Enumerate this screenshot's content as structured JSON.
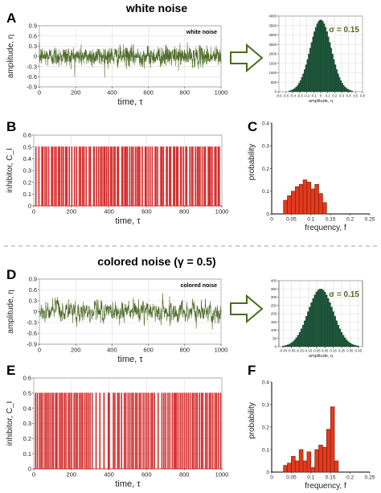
{
  "titles": {
    "top": "white noise",
    "mid": "colored noise (γ = 0.5)"
  },
  "panel_letters": [
    "A",
    "B",
    "C",
    "D",
    "E",
    "F"
  ],
  "colors": {
    "noise": "#4f6b2a",
    "spikes": "#d42a2a",
    "hist_green": "#1f5a3c",
    "hist_red": "#e23a1e",
    "sigma_text": "#4a6b1d",
    "arrow": "#4a6b1d",
    "divider": "#a0a0a0"
  },
  "chart_data": [
    {
      "panel": "A",
      "type": "line",
      "annotation": "white noise",
      "xlabel": "time, τ",
      "ylabel": "amplitude, η",
      "xlim": [
        0,
        1000
      ],
      "ylim": [
        -0.9,
        0.9
      ],
      "xticks": [
        "0",
        "200",
        "400",
        "600",
        "800",
        "1000"
      ],
      "yticks": [
        "-0.9",
        "-0.6",
        "-0.3",
        "0",
        "0.3",
        "0.6",
        "0.9"
      ],
      "noise": {
        "mean": 0,
        "sd": 0.15,
        "n": 1000,
        "correlation": 0
      }
    },
    {
      "panel": "A-inset",
      "type": "bar",
      "annotation": "σ = 0.15",
      "xlabel": "amplitude, η",
      "xticks": [
        "-0.6",
        "-0.5",
        "-0.4",
        "-0.3",
        "-0.2",
        "-0.1",
        "0",
        "0.1",
        "0.2",
        "0.3",
        "0.4",
        "0.5",
        "0.6"
      ],
      "yticks": [
        "0",
        "500",
        "1000",
        "1500",
        "2000",
        "2500",
        "3000",
        "3500",
        "4000"
      ],
      "xlim": [
        -0.6,
        0.6
      ],
      "ylim": [
        0,
        4000
      ],
      "distribution": {
        "mean": 0,
        "sd": 0.15,
        "peak": 3800,
        "bin_width": 0.02
      }
    },
    {
      "panel": "B",
      "type": "line",
      "xlabel": "time, τ",
      "ylabel": "inhibitor, C_I",
      "xlim": [
        0,
        1000
      ],
      "ylim": [
        0,
        0.6
      ],
      "xticks": [
        "0",
        "200",
        "400",
        "600",
        "800",
        "1000"
      ],
      "yticks": [
        "0",
        "0.1",
        "0.2",
        "0.3",
        "0.4",
        "0.5",
        "0.6"
      ],
      "pulse_height": 0.5,
      "pulse_width": 3,
      "pulse_times": [
        10,
        26,
        42,
        47,
        58,
        67,
        78,
        93,
        99,
        110,
        118,
        130,
        137,
        147,
        156,
        168,
        175,
        187,
        201,
        215,
        226,
        240,
        248,
        258,
        266,
        277,
        293,
        300,
        317,
        320,
        332,
        343,
        353,
        361,
        371,
        377,
        386,
        395,
        407,
        414,
        424,
        431,
        443,
        449,
        467,
        472,
        482,
        489,
        496,
        509,
        519,
        527,
        539,
        548,
        556,
        563,
        575,
        591,
        596,
        607,
        617,
        628,
        644,
        648,
        657,
        674,
        680,
        688,
        704,
        708,
        720,
        727,
        742,
        748,
        758,
        765,
        780,
        783,
        794,
        807,
        812,
        828,
        838,
        845,
        858,
        868,
        875,
        883,
        894,
        905,
        911,
        926,
        932,
        938,
        947,
        961,
        968,
        979,
        985
      ]
    },
    {
      "panel": "C",
      "type": "bar",
      "xlabel": "frequency, f",
      "ylabel": "probability",
      "xlim": [
        0,
        0.25
      ],
      "ylim": [
        0,
        0.4
      ],
      "xticks": [
        "0",
        "0.05",
        "0.1",
        "0.15",
        "0.2",
        "0.25"
      ],
      "yticks": [
        "0",
        "0.1",
        "0.2",
        "0.3",
        "0.4"
      ],
      "bin_width": 0.01,
      "x": [
        0.035,
        0.045,
        0.055,
        0.065,
        0.075,
        0.085,
        0.095,
        0.105,
        0.115,
        0.125,
        0.135
      ],
      "values": [
        0.06,
        0.08,
        0.1,
        0.12,
        0.13,
        0.15,
        0.14,
        0.11,
        0.13,
        0.09,
        0.05
      ]
    },
    {
      "panel": "D",
      "type": "line",
      "annotation": "colored noise",
      "xlabel": "time, τ",
      "ylabel": "amplitude, η",
      "xlim": [
        0,
        1000
      ],
      "ylim": [
        -0.9,
        0.9
      ],
      "xticks": [
        "0",
        "200",
        "400",
        "600",
        "800",
        "1000"
      ],
      "yticks": [
        "-0.9",
        "-0.6",
        "-0.3",
        "0",
        "0.3",
        "0.6",
        "0.9"
      ],
      "noise": {
        "mean": 0,
        "sd": 0.15,
        "n": 1000,
        "correlation": 0.5
      }
    },
    {
      "panel": "D-inset",
      "type": "bar",
      "annotation": "σ = 0.15",
      "xlabel": "amplitude, η",
      "xticks": [
        "-0.45",
        "-0.35",
        "-0.25",
        "-0.15",
        "-0.05",
        "0.05",
        "0.15",
        "0.25",
        "0.35",
        "0.45"
      ],
      "yticks": [
        "0",
        "50",
        "100",
        "150",
        "200",
        "250",
        "300",
        "350",
        "400"
      ],
      "xlim": [
        -0.5,
        0.5
      ],
      "ylim": [
        0,
        400
      ],
      "distribution": {
        "mean": 0,
        "sd": 0.15,
        "peak": 350,
        "bin_width": 0.02
      }
    },
    {
      "panel": "E",
      "type": "line",
      "xlabel": "time, τ",
      "ylabel": "inhibitor, C_I",
      "xlim": [
        0,
        1000
      ],
      "ylim": [
        0,
        0.6
      ],
      "xticks": [
        "0",
        "200",
        "400",
        "600",
        "800",
        "1000"
      ],
      "yticks": [
        "0",
        "0.1",
        "0.2",
        "0.3",
        "0.4",
        "0.5",
        "0.6"
      ],
      "pulse_height": 0.5,
      "pulse_width": 3,
      "pulse_times": [
        8,
        18,
        30,
        38,
        47,
        58,
        66,
        75,
        85,
        95,
        103,
        115,
        122,
        134,
        143,
        151,
        162,
        170,
        182,
        190,
        200,
        213,
        222,
        230,
        241,
        250,
        258,
        270,
        279,
        288,
        298,
        309,
        330,
        350,
        372,
        395,
        400,
        422,
        430,
        445,
        452,
        465,
        480,
        488,
        500,
        510,
        520,
        528,
        540,
        548,
        560,
        568,
        580,
        590,
        600,
        610,
        622,
        630,
        640,
        660,
        680,
        690,
        700,
        712,
        722,
        735,
        745,
        752,
        760,
        770,
        780,
        790,
        800,
        810,
        820,
        830,
        842,
        850,
        860,
        868,
        880,
        890,
        898,
        912,
        920,
        932,
        940,
        950,
        962,
        970,
        980,
        992
      ]
    },
    {
      "panel": "F",
      "type": "bar",
      "xlabel": "frequency, f",
      "ylabel": "probability",
      "xlim": [
        0,
        0.25
      ],
      "ylim": [
        0,
        0.4
      ],
      "xticks": [
        "0",
        "0.05",
        "0.1",
        "0.15",
        "0.2",
        "0.25"
      ],
      "yticks": [
        "0",
        "0.1",
        "0.2",
        "0.3",
        "0.4"
      ],
      "bin_width": 0.01,
      "x": [
        0.035,
        0.045,
        0.055,
        0.065,
        0.075,
        0.085,
        0.095,
        0.105,
        0.115,
        0.125,
        0.135,
        0.145,
        0.155,
        0.165
      ],
      "values": [
        0.03,
        0.04,
        0.07,
        0.05,
        0.1,
        0.05,
        0.09,
        0.02,
        0.1,
        0.12,
        0.11,
        0.19,
        0.29,
        0.05
      ]
    }
  ]
}
